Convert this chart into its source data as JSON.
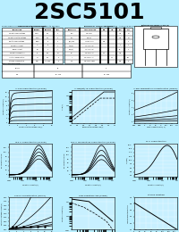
{
  "title": "2SC5101",
  "title_bg": "#00FFFF",
  "title_color": "#000000",
  "page_bg": "#B8EEFF",
  "graph_bg": "#C8F0FF",
  "subtitle_left": "Silicon NPN Triple Power Transistor  Complementary to 2SA1941",
  "subtitle_right": "Application : Audio and General Purpose",
  "graph_titles_row1": [
    "Ic-VCE Characteristics (Typical)",
    "Ic-VBE(sat)-IB Characteristics (Typical)",
    "Ic-hFE Temperature Characteristics (Typical)"
  ],
  "graph_titles_row2": [
    "hFE-IC Characteristics (Typical)",
    "hFE-IC Temperature Characteristics (Typical)",
    "fT-IC Characteristics"
  ],
  "graph_titles_row3": [
    "VCE-IC Characteristics (Typical)",
    "Safe Operating Area (Power)",
    "Rthj-Po Derating"
  ]
}
